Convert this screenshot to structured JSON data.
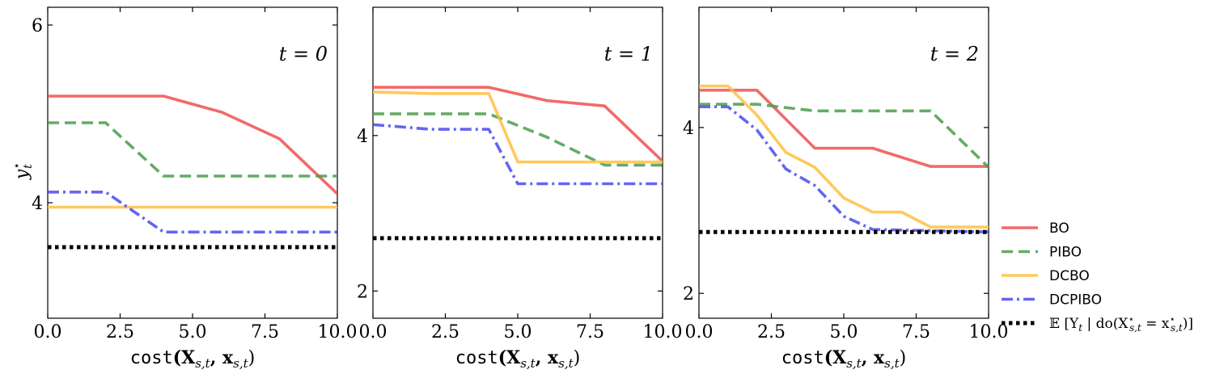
{
  "chart_data": {
    "type": "line",
    "series_styles": [
      {
        "name": "BO",
        "color": "#f05050",
        "dash": "solid"
      },
      {
        "name": "PIBO",
        "color": "#4a9e4a",
        "dash": "dashed"
      },
      {
        "name": "DCBO",
        "color": "#ffbf40",
        "dash": "solid"
      },
      {
        "name": "DCPIBO",
        "color": "#4a4aee",
        "dash": "dashdot"
      },
      {
        "name": "𝔼[Yt | do(X⋆s,t = x⋆s,t)]",
        "color": "#000000",
        "dash": "dotted"
      }
    ],
    "legend_placement": "lower-right outside",
    "panels": [
      {
        "title": "t = 0",
        "xlabel_func": "cost",
        "xlabel_args": "(X",
        "xlabel_sub1": "s,t",
        "xlabel_mid": ", x",
        "xlabel_sub2": "s,t",
        "xlabel_end": ")",
        "ylabel": "y",
        "ylabel_sup": "⋆",
        "ylabel_sub": "t",
        "xlim": [
          0,
          10
        ],
        "ylim": [
          2.7,
          6.2
        ],
        "xticks": [
          "0.0",
          "2.5",
          "5.0",
          "7.5",
          "10.0"
        ],
        "yticks": [
          "4",
          "6"
        ],
        "xtick_values": [
          0,
          2.5,
          5,
          7.5,
          10
        ],
        "ytick_values": [
          4,
          6
        ],
        "series": [
          {
            "name": "BO",
            "x": [
              0,
              4,
              6,
              8,
              10
            ],
            "y": [
              5.2,
              5.2,
              5.02,
              4.72,
              4.1
            ]
          },
          {
            "name": "PIBO",
            "x": [
              0,
              2,
              4,
              10
            ],
            "y": [
              4.9,
              4.9,
              4.3,
              4.3
            ]
          },
          {
            "name": "DCBO",
            "x": [
              0,
              10
            ],
            "y": [
              3.95,
              3.95
            ]
          },
          {
            "name": "DCPIBO",
            "x": [
              0,
              2,
              4,
              10
            ],
            "y": [
              4.12,
              4.12,
              3.67,
              3.67
            ]
          },
          {
            "name": "𝔼[Yt | do(X⋆s,t = x⋆s,t)]",
            "x": [
              0,
              10
            ],
            "y": [
              3.5,
              3.5
            ]
          }
        ]
      },
      {
        "title": "t = 1",
        "xlabel_func": "cost",
        "xlabel_args": "(X",
        "xlabel_sub1": "s,t",
        "xlabel_mid": ", x",
        "xlabel_sub2": "s,t",
        "xlabel_end": ")",
        "xlim": [
          0,
          10
        ],
        "ylim": [
          1.65,
          5.65
        ],
        "xticks": [
          "0.0",
          "2.5",
          "5.0",
          "7.5",
          "10.0"
        ],
        "yticks": [
          "2",
          "4"
        ],
        "xtick_values": [
          0,
          2.5,
          5,
          7.5,
          10
        ],
        "ytick_values": [
          2,
          4
        ],
        "series": [
          {
            "name": "BO",
            "x": [
              0,
              4,
              6,
              8,
              10
            ],
            "y": [
              4.62,
              4.62,
              4.45,
              4.38,
              3.67
            ]
          },
          {
            "name": "PIBO",
            "x": [
              0,
              4,
              6,
              8,
              10
            ],
            "y": [
              4.28,
              4.28,
              3.98,
              3.62,
              3.62
            ]
          },
          {
            "name": "DCBO",
            "x": [
              0,
              2,
              4,
              5,
              10
            ],
            "y": [
              4.56,
              4.54,
              4.54,
              3.66,
              3.66
            ]
          },
          {
            "name": "DCPIBO",
            "x": [
              0,
              2,
              4,
              5,
              10
            ],
            "y": [
              4.14,
              4.08,
              4.08,
              3.38,
              3.38
            ]
          },
          {
            "name": "𝔼[Yt | do(X⋆s,t = x⋆s,t)]",
            "x": [
              0,
              10
            ],
            "y": [
              2.68,
              2.68
            ]
          }
        ]
      },
      {
        "title": "t = 2",
        "xlabel_func": "cost",
        "xlabel_args": "(X",
        "xlabel_sub1": "s,t",
        "xlabel_mid": ", x",
        "xlabel_sub2": "s,t",
        "xlabel_end": ")",
        "xlim": [
          0,
          10
        ],
        "ylim": [
          1.7,
          5.45
        ],
        "xticks": [
          "0.0",
          "2.5",
          "5.0",
          "7.5",
          "10.0"
        ],
        "yticks": [
          "2",
          "4"
        ],
        "xtick_values": [
          0,
          2.5,
          5,
          7.5,
          10
        ],
        "ytick_values": [
          2,
          4
        ],
        "series": [
          {
            "name": "BO",
            "x": [
              0,
              2,
              4,
              6,
              8,
              10
            ],
            "y": [
              4.45,
              4.45,
              3.75,
              3.75,
              3.53,
              3.53
            ]
          },
          {
            "name": "PIBO",
            "x": [
              0,
              2,
              4,
              6,
              8,
              10
            ],
            "y": [
              4.28,
              4.28,
              4.2,
              4.2,
              4.2,
              3.52
            ]
          },
          {
            "name": "DCBO",
            "x": [
              0,
              1,
              2,
              3,
              4,
              5,
              6,
              7,
              8,
              10
            ],
            "y": [
              4.5,
              4.5,
              4.15,
              3.7,
              3.52,
              3.15,
              2.98,
              2.98,
              2.8,
              2.8
            ]
          },
          {
            "name": "DCPIBO",
            "x": [
              0,
              1,
              2,
              3,
              4,
              5,
              6,
              10
            ],
            "y": [
              4.25,
              4.25,
              3.97,
              3.5,
              3.3,
              2.93,
              2.77,
              2.74
            ]
          },
          {
            "name": "𝔼[Yt | do(X⋆s,t = x⋆s,t)]",
            "x": [
              0,
              10
            ],
            "y": [
              2.74,
              2.74
            ]
          }
        ]
      }
    ],
    "legend": {
      "entries": [
        "BO",
        "PIBO",
        "DCBO",
        "DCPIBO"
      ],
      "expectation_label": {
        "prefix": "𝔼 [Y",
        "sub_t": "t",
        "mid": " | do(X",
        "sup_star": "⋆",
        "sub_st": "s,t",
        "eq": " = x",
        "sup_star2": "⋆",
        "sub_st2": "s,t",
        "suffix": ")]"
      }
    }
  }
}
